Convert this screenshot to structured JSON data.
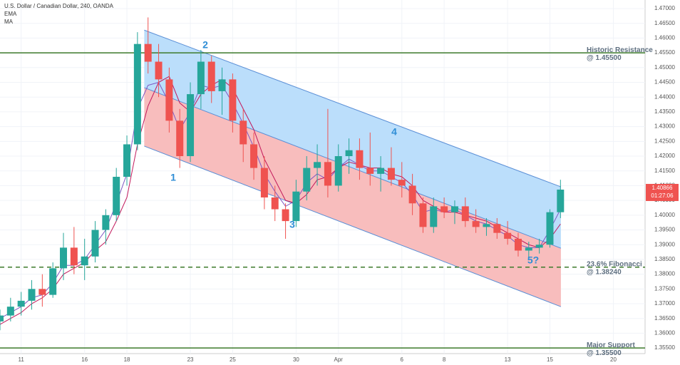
{
  "chart_data": {
    "type": "candlestick",
    "title": "U.S. Dollar / Canadian Dollar, 240, OANDA",
    "x": [
      -1,
      -0.5,
      0,
      0.5,
      1,
      1.5,
      2,
      2.5,
      3,
      3.5,
      4,
      4.5,
      5,
      5.5,
      6,
      6.5,
      7,
      7.5,
      8,
      8.5,
      9,
      9.5,
      10,
      10.5,
      11,
      11.5,
      12,
      12.5,
      13,
      13.5,
      14,
      14.5,
      15,
      15.5,
      16,
      16.5,
      17,
      17.5,
      18,
      18.5,
      19,
      19.5,
      20,
      20.5,
      21,
      21.5,
      22,
      22.5,
      23,
      23.5,
      24,
      24.5,
      25,
      25.5
    ],
    "open": [
      1.364,
      1.366,
      1.369,
      1.371,
      1.375,
      1.373,
      1.382,
      1.389,
      1.383,
      1.386,
      1.395,
      1.4,
      1.413,
      1.424,
      1.458,
      1.452,
      1.446,
      1.432,
      1.42,
      1.441,
      1.452,
      1.442,
      1.446,
      1.432,
      1.424,
      1.416,
      1.406,
      1.402,
      1.398,
      1.408,
      1.416,
      1.418,
      1.41,
      1.42,
      1.422,
      1.416,
      1.414,
      1.416,
      1.412,
      1.41,
      1.404,
      1.396,
      1.403,
      1.401,
      1.403,
      1.398,
      1.396,
      1.397,
      1.394,
      1.392,
      1.388,
      1.389,
      1.39,
      1.401
    ],
    "high": [
      1.368,
      1.372,
      1.374,
      1.378,
      1.38,
      1.384,
      1.394,
      1.396,
      1.392,
      1.398,
      1.402,
      1.416,
      1.427,
      1.462,
      1.467,
      1.458,
      1.45,
      1.436,
      1.445,
      1.456,
      1.454,
      1.45,
      1.448,
      1.436,
      1.428,
      1.42,
      1.41,
      1.404,
      1.412,
      1.42,
      1.424,
      1.436,
      1.424,
      1.426,
      1.426,
      1.428,
      1.42,
      1.423,
      1.418,
      1.414,
      1.406,
      1.406,
      1.406,
      1.405,
      1.406,
      1.402,
      1.399,
      1.399,
      1.398,
      1.394,
      1.391,
      1.392,
      1.402,
      1.412
    ],
    "low": [
      1.361,
      1.364,
      1.366,
      1.368,
      1.369,
      1.372,
      1.378,
      1.38,
      1.378,
      1.384,
      1.39,
      1.398,
      1.41,
      1.422,
      1.448,
      1.44,
      1.428,
      1.416,
      1.418,
      1.436,
      1.438,
      1.434,
      1.428,
      1.418,
      1.412,
      1.402,
      1.398,
      1.392,
      1.396,
      1.405,
      1.41,
      1.406,
      1.408,
      1.414,
      1.412,
      1.41,
      1.408,
      1.41,
      1.406,
      1.4,
      1.394,
      1.394,
      1.399,
      1.397,
      1.396,
      1.394,
      1.393,
      1.392,
      1.39,
      1.386,
      1.385,
      1.387,
      1.389,
      1.399
    ],
    "close": [
      1.366,
      1.369,
      1.371,
      1.375,
      1.373,
      1.382,
      1.389,
      1.383,
      1.386,
      1.395,
      1.4,
      1.413,
      1.424,
      1.458,
      1.452,
      1.446,
      1.432,
      1.42,
      1.441,
      1.452,
      1.442,
      1.446,
      1.432,
      1.424,
      1.416,
      1.406,
      1.402,
      1.398,
      1.408,
      1.416,
      1.418,
      1.41,
      1.42,
      1.422,
      1.416,
      1.414,
      1.416,
      1.412,
      1.41,
      1.404,
      1.396,
      1.403,
      1.401,
      1.403,
      1.398,
      1.396,
      1.397,
      1.394,
      1.392,
      1.388,
      1.389,
      1.39,
      1.401,
      1.40866
    ],
    "up_color": "#26a69a",
    "down_color": "#ef5350",
    "series": [
      {
        "name": "EMA",
        "color": "#7e57c2",
        "values": [
          1.365,
          1.367,
          1.369,
          1.372,
          1.373,
          1.377,
          1.383,
          1.383,
          1.385,
          1.39,
          1.395,
          1.404,
          1.414,
          1.436,
          1.444,
          1.445,
          1.438,
          1.429,
          1.435,
          1.444,
          1.443,
          1.444,
          1.438,
          1.431,
          1.423,
          1.414,
          1.408,
          1.403,
          1.405,
          1.411,
          1.414,
          1.412,
          1.416,
          1.419,
          1.417,
          1.415,
          1.415,
          1.413,
          1.411,
          1.407,
          1.401,
          1.402,
          1.401,
          1.402,
          1.4,
          1.398,
          1.397,
          1.395,
          1.393,
          1.39,
          1.389,
          1.389,
          1.395,
          1.402
        ]
      },
      {
        "name": "MA",
        "color": "#c2185b",
        "values": [
          1.363,
          1.365,
          1.367,
          1.37,
          1.372,
          1.375,
          1.38,
          1.382,
          1.384,
          1.388,
          1.391,
          1.398,
          1.406,
          1.424,
          1.437,
          1.445,
          1.447,
          1.438,
          1.435,
          1.441,
          1.444,
          1.446,
          1.443,
          1.436,
          1.429,
          1.419,
          1.412,
          1.405,
          1.404,
          1.407,
          1.412,
          1.413,
          1.416,
          1.418,
          1.417,
          1.416,
          1.416,
          1.414,
          1.413,
          1.41,
          1.405,
          1.403,
          1.401,
          1.401,
          1.4,
          1.399,
          1.398,
          1.396,
          1.394,
          1.392,
          1.39,
          1.389,
          1.392,
          1.397
        ]
      }
    ],
    "channel": {
      "x": [
        5.82,
        25.52
      ],
      "upper": [
        1.4627,
        1.4096
      ],
      "middle": [
        1.4432,
        1.3888
      ],
      "lower": [
        1.4234,
        1.369
      ],
      "upper_fill": "#bbdefb",
      "lower_fill": "#f8bdbd",
      "line_color": "#5b8fd6"
    },
    "levels": [
      {
        "value": 1.455,
        "label": [
          "Historic Resistance",
          "@ 1.45500"
        ],
        "color": "#3d7a2b",
        "dashed": false
      },
      {
        "value": 1.3824,
        "label": [
          "23.6% Fibonacci",
          "@ 1.38240"
        ],
        "color": "#3d7a2b",
        "dashed": true
      },
      {
        "value": 1.355,
        "label": [
          "Major Support",
          "@ 1.35500"
        ],
        "color": "#3d7a2b",
        "dashed": false
      }
    ],
    "wave_labels": [
      "1",
      "2",
      "3",
      "4",
      "5?"
    ],
    "countdown": "01:27:06",
    "xlim": [
      -1,
      29.5
    ],
    "xticks": [
      {
        "value": 0,
        "label": "11"
      },
      {
        "value": 3,
        "label": "16"
      },
      {
        "value": 5,
        "label": "18"
      },
      {
        "value": 8,
        "label": "23"
      },
      {
        "value": 10,
        "label": "25"
      },
      {
        "value": 13,
        "label": "30"
      },
      {
        "value": 15,
        "label": "Apr"
      },
      {
        "value": 18,
        "label": "6"
      },
      {
        "value": 20,
        "label": "8"
      },
      {
        "value": 23,
        "label": "13"
      },
      {
        "value": 25,
        "label": "15"
      },
      {
        "value": 28,
        "label": "20"
      }
    ],
    "ylim": [
      1.3531,
      1.4729
    ],
    "yticks": [
      {
        "value": 1.355,
        "label": "1.35500"
      },
      {
        "value": 1.36,
        "label": "1.36000"
      },
      {
        "value": 1.365,
        "label": "1.36500"
      },
      {
        "value": 1.37,
        "label": "1.37000"
      },
      {
        "value": 1.375,
        "label": "1.37500"
      },
      {
        "value": 1.38,
        "label": "1.38000"
      },
      {
        "value": 1.385,
        "label": "1.38500"
      },
      {
        "value": 1.39,
        "label": "1.39000"
      },
      {
        "value": 1.395,
        "label": "1.39500"
      },
      {
        "value": 1.4,
        "label": "1.40000"
      },
      {
        "value": 1.405,
        "label": "1.40500"
      },
      {
        "value": 1.41,
        "label": "1.41000"
      },
      {
        "value": 1.415,
        "label": "1.41500"
      },
      {
        "value": 1.42,
        "label": "1.42000"
      },
      {
        "value": 1.425,
        "label": "1.42500"
      },
      {
        "value": 1.43,
        "label": "1.43000"
      },
      {
        "value": 1.435,
        "label": "1.43500"
      },
      {
        "value": 1.44,
        "label": "1.44000"
      },
      {
        "value": 1.445,
        "label": "1.44500"
      },
      {
        "value": 1.45,
        "label": "1.45000"
      },
      {
        "value": 1.455,
        "label": "1.45500"
      },
      {
        "value": 1.46,
        "label": "1.46000"
      },
      {
        "value": 1.465,
        "label": "1.46500"
      },
      {
        "value": 1.47,
        "label": "1.47000"
      }
    ],
    "grid": true
  }
}
